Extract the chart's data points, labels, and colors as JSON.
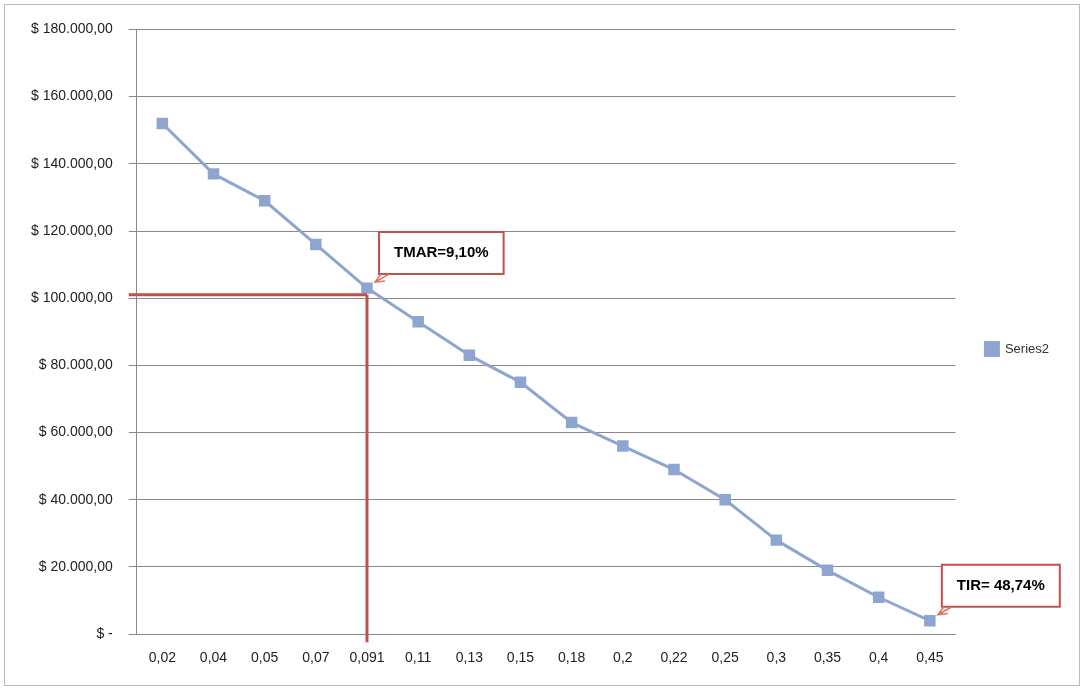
{
  "chart_data": {
    "type": "line",
    "categories": [
      "0,02",
      "0,04",
      "0,05",
      "0,07",
      "0,091",
      "0,11",
      "0,13",
      "0,15",
      "0,18",
      "0,2",
      "0,22",
      "0,25",
      "0,3",
      "0,35",
      "0,4",
      "0,45"
    ],
    "series": [
      {
        "name": "Series2",
        "color": "#8ea5d0",
        "values": [
          152000,
          137000,
          129000,
          116000,
          103000,
          93000,
          83000,
          75000,
          63000,
          56000,
          49000,
          40000,
          28000,
          19000,
          11000,
          4000
        ]
      }
    ],
    "ylim": [
      0,
      180000
    ],
    "yticks": [
      {
        "value": 0,
        "label": "$ -"
      },
      {
        "value": 20000,
        "label": "$ 20.000,00"
      },
      {
        "value": 40000,
        "label": "$ 40.000,00"
      },
      {
        "value": 60000,
        "label": "$ 60.000,00"
      },
      {
        "value": 80000,
        "label": "$ 80.000,00"
      },
      {
        "value": 100000,
        "label": "$ 100.000,00"
      },
      {
        "value": 120000,
        "label": "$ 120.000,00"
      },
      {
        "value": 140000,
        "label": "$ 140.000,00"
      },
      {
        "value": 160000,
        "label": "$ 160.000,00"
      },
      {
        "value": 180000,
        "label": "$ 180.000,00"
      }
    ],
    "ref_lines": [
      {
        "axis": "y",
        "value": 101000,
        "color": "#c0504d"
      },
      {
        "axis": "x",
        "value": "0,091",
        "color": "#c0504d"
      }
    ],
    "annotations": [
      {
        "text": "TMAR=9,10%",
        "x": "0,091",
        "y": 103000
      },
      {
        "text": "TIR= 48,74%",
        "x": "0,45",
        "y": 4000
      }
    ],
    "grid": "y",
    "legend": "right",
    "marker": "square",
    "line_style": "solid"
  }
}
